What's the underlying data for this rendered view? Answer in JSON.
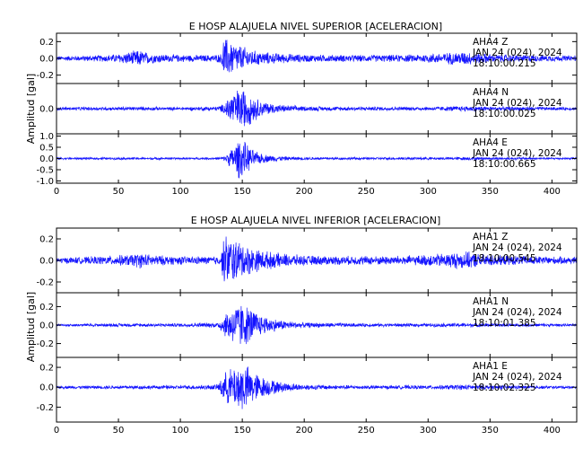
{
  "chart_data": [
    {
      "type": "line",
      "title": "E HOSP ALAJUELA NIVEL SUPERIOR [ACELERACION]",
      "ylabel": "Amplitud [gal]",
      "xlim": [
        0,
        420
      ],
      "xticks": [
        0,
        50,
        100,
        150,
        200,
        250,
        300,
        350,
        400
      ],
      "line_color": "#1414ff",
      "grid": false,
      "panels": [
        {
          "station": "AHA4",
          "component": "Z",
          "date": "JAN 24 (024), 2024",
          "time": "18:10:00.215",
          "ylim": [
            -0.3,
            0.3
          ],
          "yticks": [
            0.2,
            0.0,
            -0.2
          ],
          "ytick_labels": [
            "0.2",
            "0.0",
            "-0.2"
          ],
          "envelope": {
            "x": [
              0,
              20,
              40,
              50,
              60,
              67,
              75,
              90,
              110,
              125,
              133,
              135,
              137,
              142,
              150,
              160,
              175,
              200,
              230,
              260,
              290,
              310,
              330,
              340,
              360,
              380,
              400,
              420
            ],
            "y": [
              0.03,
              0.035,
              0.045,
              0.06,
              0.09,
              0.11,
              0.07,
              0.05,
              0.045,
              0.045,
              0.06,
              0.3,
              0.26,
              0.22,
              0.16,
              0.1,
              0.07,
              0.05,
              0.045,
              0.045,
              0.05,
              0.07,
              0.09,
              0.07,
              0.05,
              0.045,
              0.04,
              0.035
            ]
          }
        },
        {
          "station": "AHA4",
          "component": "N",
          "date": "JAN 24 (024), 2024",
          "time": "18:10:00.025",
          "ylim": [
            -0.3,
            0.3
          ],
          "yticks": [
            0.0
          ],
          "ytick_labels": [
            "0.0"
          ],
          "envelope": {
            "x": [
              0,
              60,
              100,
              130,
              135,
              140,
              150,
              155,
              165,
              180,
              200,
              250,
              300,
              330,
              360,
              420
            ],
            "y": [
              0.02,
              0.025,
              0.02,
              0.03,
              0.06,
              0.2,
              0.28,
              0.22,
              0.1,
              0.05,
              0.03,
              0.025,
              0.025,
              0.035,
              0.025,
              0.02
            ]
          }
        },
        {
          "station": "AHA4",
          "component": "E",
          "date": "JAN 24 (024), 2024",
          "time": "18:10:00.665",
          "ylim": [
            -1.1,
            1.1
          ],
          "yticks": [
            1.0,
            0.5,
            0.0,
            -0.5,
            -1.0
          ],
          "ytick_labels": [
            "1.0",
            "0.5",
            "0.0",
            "-0.5",
            "-1.0"
          ],
          "envelope": {
            "x": [
              0,
              60,
              100,
              130,
              135,
              140,
              148,
              152,
              160,
              170,
              185,
              200,
              250,
              300,
              330,
              360,
              420
            ],
            "y": [
              0.05,
              0.06,
              0.05,
              0.06,
              0.1,
              0.4,
              1.0,
              0.8,
              0.35,
              0.18,
              0.1,
              0.07,
              0.06,
              0.06,
              0.08,
              0.06,
              0.05
            ]
          }
        }
      ]
    },
    {
      "type": "line",
      "title": "E HOSP ALAJUELA NIVEL INFERIOR [ACELERACION]",
      "ylabel": "Amplitud [gal]",
      "xlim": [
        0,
        420
      ],
      "xticks": [
        0,
        50,
        100,
        150,
        200,
        250,
        300,
        350,
        400
      ],
      "line_color": "#1414ff",
      "grid": false,
      "panels": [
        {
          "station": "AHA1",
          "component": "Z",
          "date": "JAN 24 (024), 2024",
          "time": "18:10:00.545",
          "ylim": [
            -0.3,
            0.3
          ],
          "yticks": [
            0.2,
            0.0,
            -0.2
          ],
          "ytick_labels": [
            "0.2",
            "0.0",
            "-0.2"
          ],
          "envelope": {
            "x": [
              0,
              20,
              40,
              60,
              67,
              75,
              90,
              110,
              125,
              133,
              135,
              140,
              150,
              160,
              175,
              200,
              230,
              260,
              290,
              310,
              330,
              340,
              360,
              380,
              400,
              420
            ],
            "y": [
              0.03,
              0.035,
              0.045,
              0.06,
              0.08,
              0.06,
              0.045,
              0.04,
              0.04,
              0.05,
              0.27,
              0.24,
              0.18,
              0.12,
              0.08,
              0.05,
              0.045,
              0.045,
              0.05,
              0.07,
              0.09,
              0.07,
              0.05,
              0.045,
              0.04,
              0.035
            ]
          }
        },
        {
          "station": "AHA1",
          "component": "N",
          "date": "JAN 24 (024), 2024",
          "time": "18:10:01.385",
          "ylim": [
            -0.35,
            0.35
          ],
          "yticks": [
            0.2,
            0.0,
            -0.2
          ],
          "ytick_labels": [
            "0.2",
            "0.0",
            "-0.2"
          ],
          "envelope": {
            "x": [
              0,
              60,
              100,
              130,
              135,
              140,
              148,
              155,
              165,
              180,
              200,
              250,
              300,
              330,
              360,
              420
            ],
            "y": [
              0.015,
              0.02,
              0.02,
              0.03,
              0.12,
              0.2,
              0.28,
              0.22,
              0.12,
              0.06,
              0.03,
              0.02,
              0.02,
              0.025,
              0.02,
              0.015
            ]
          }
        },
        {
          "station": "AHA1",
          "component": "E",
          "date": "JAN 24 (024), 2024",
          "time": "18:10:02.325",
          "ylim": [
            -0.35,
            0.3
          ],
          "yticks": [
            0.2,
            0.0,
            -0.2
          ],
          "ytick_labels": [
            "0.2",
            "0.0",
            "-0.2"
          ],
          "envelope": {
            "x": [
              0,
              60,
              100,
              130,
              135,
              140,
              150,
              155,
              165,
              180,
              200,
              250,
              300,
              330,
              360,
              420
            ],
            "y": [
              0.015,
              0.02,
              0.02,
              0.03,
              0.15,
              0.2,
              0.28,
              0.22,
              0.12,
              0.06,
              0.03,
              0.02,
              0.02,
              0.03,
              0.02,
              0.015
            ]
          }
        }
      ]
    }
  ]
}
